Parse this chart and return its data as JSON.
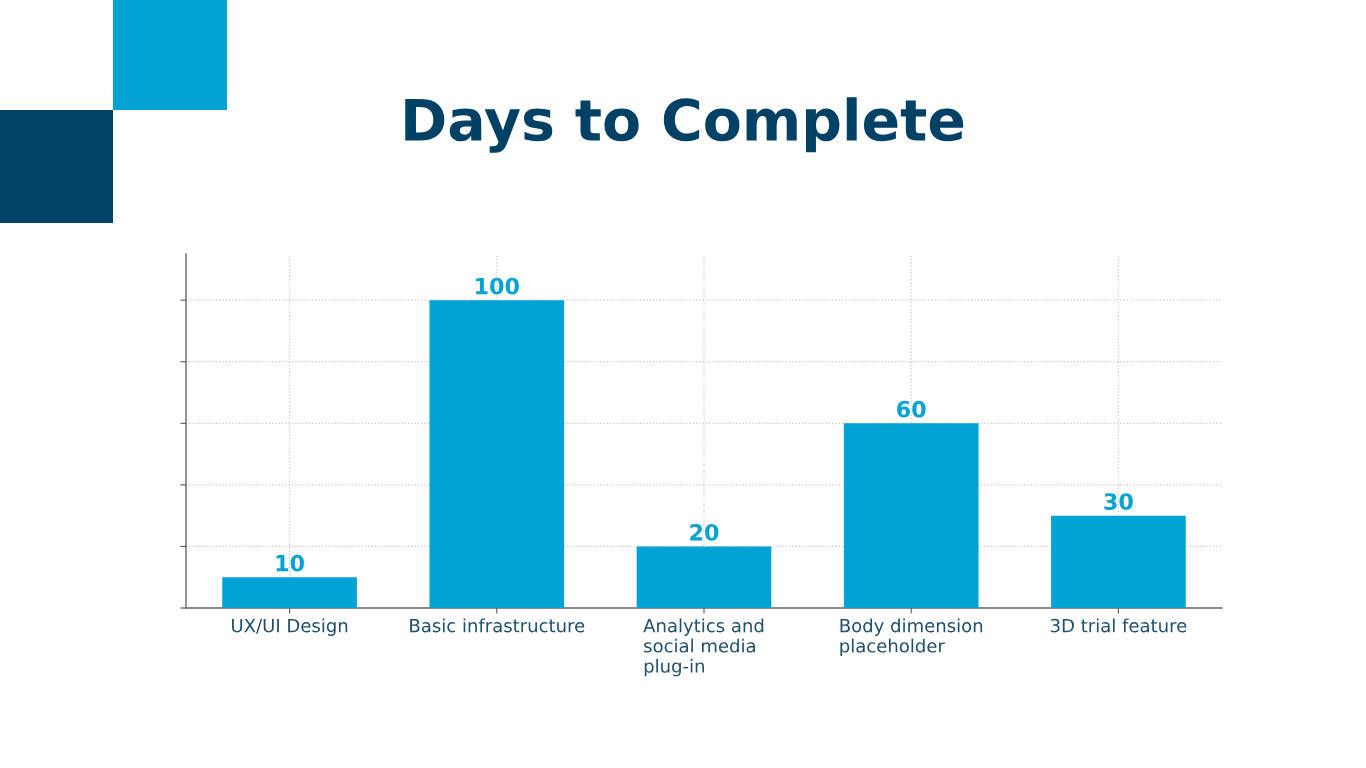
{
  "chart_data": {
    "type": "bar",
    "title": "Days to Complete",
    "categories": [
      "UX/UI Design",
      "Basic infrastructure",
      "Analytics and\nsocial media\nplug-in",
      "Body dimension\nplaceholder",
      "3D trial feature"
    ],
    "values": [
      10,
      100,
      20,
      60,
      30
    ],
    "color": "#00a3d4",
    "ylim": [
      0,
      115
    ],
    "yticks": [
      {
        "value": 0,
        "label": null
      },
      {
        "value": 20,
        "label": null
      },
      {
        "value": 40,
        "label": null
      },
      {
        "value": 60,
        "label": null
      },
      {
        "value": 80,
        "label": null
      },
      {
        "value": 100,
        "label": null
      }
    ],
    "grid": true,
    "data_labels": true,
    "tick_labels": "x"
  }
}
